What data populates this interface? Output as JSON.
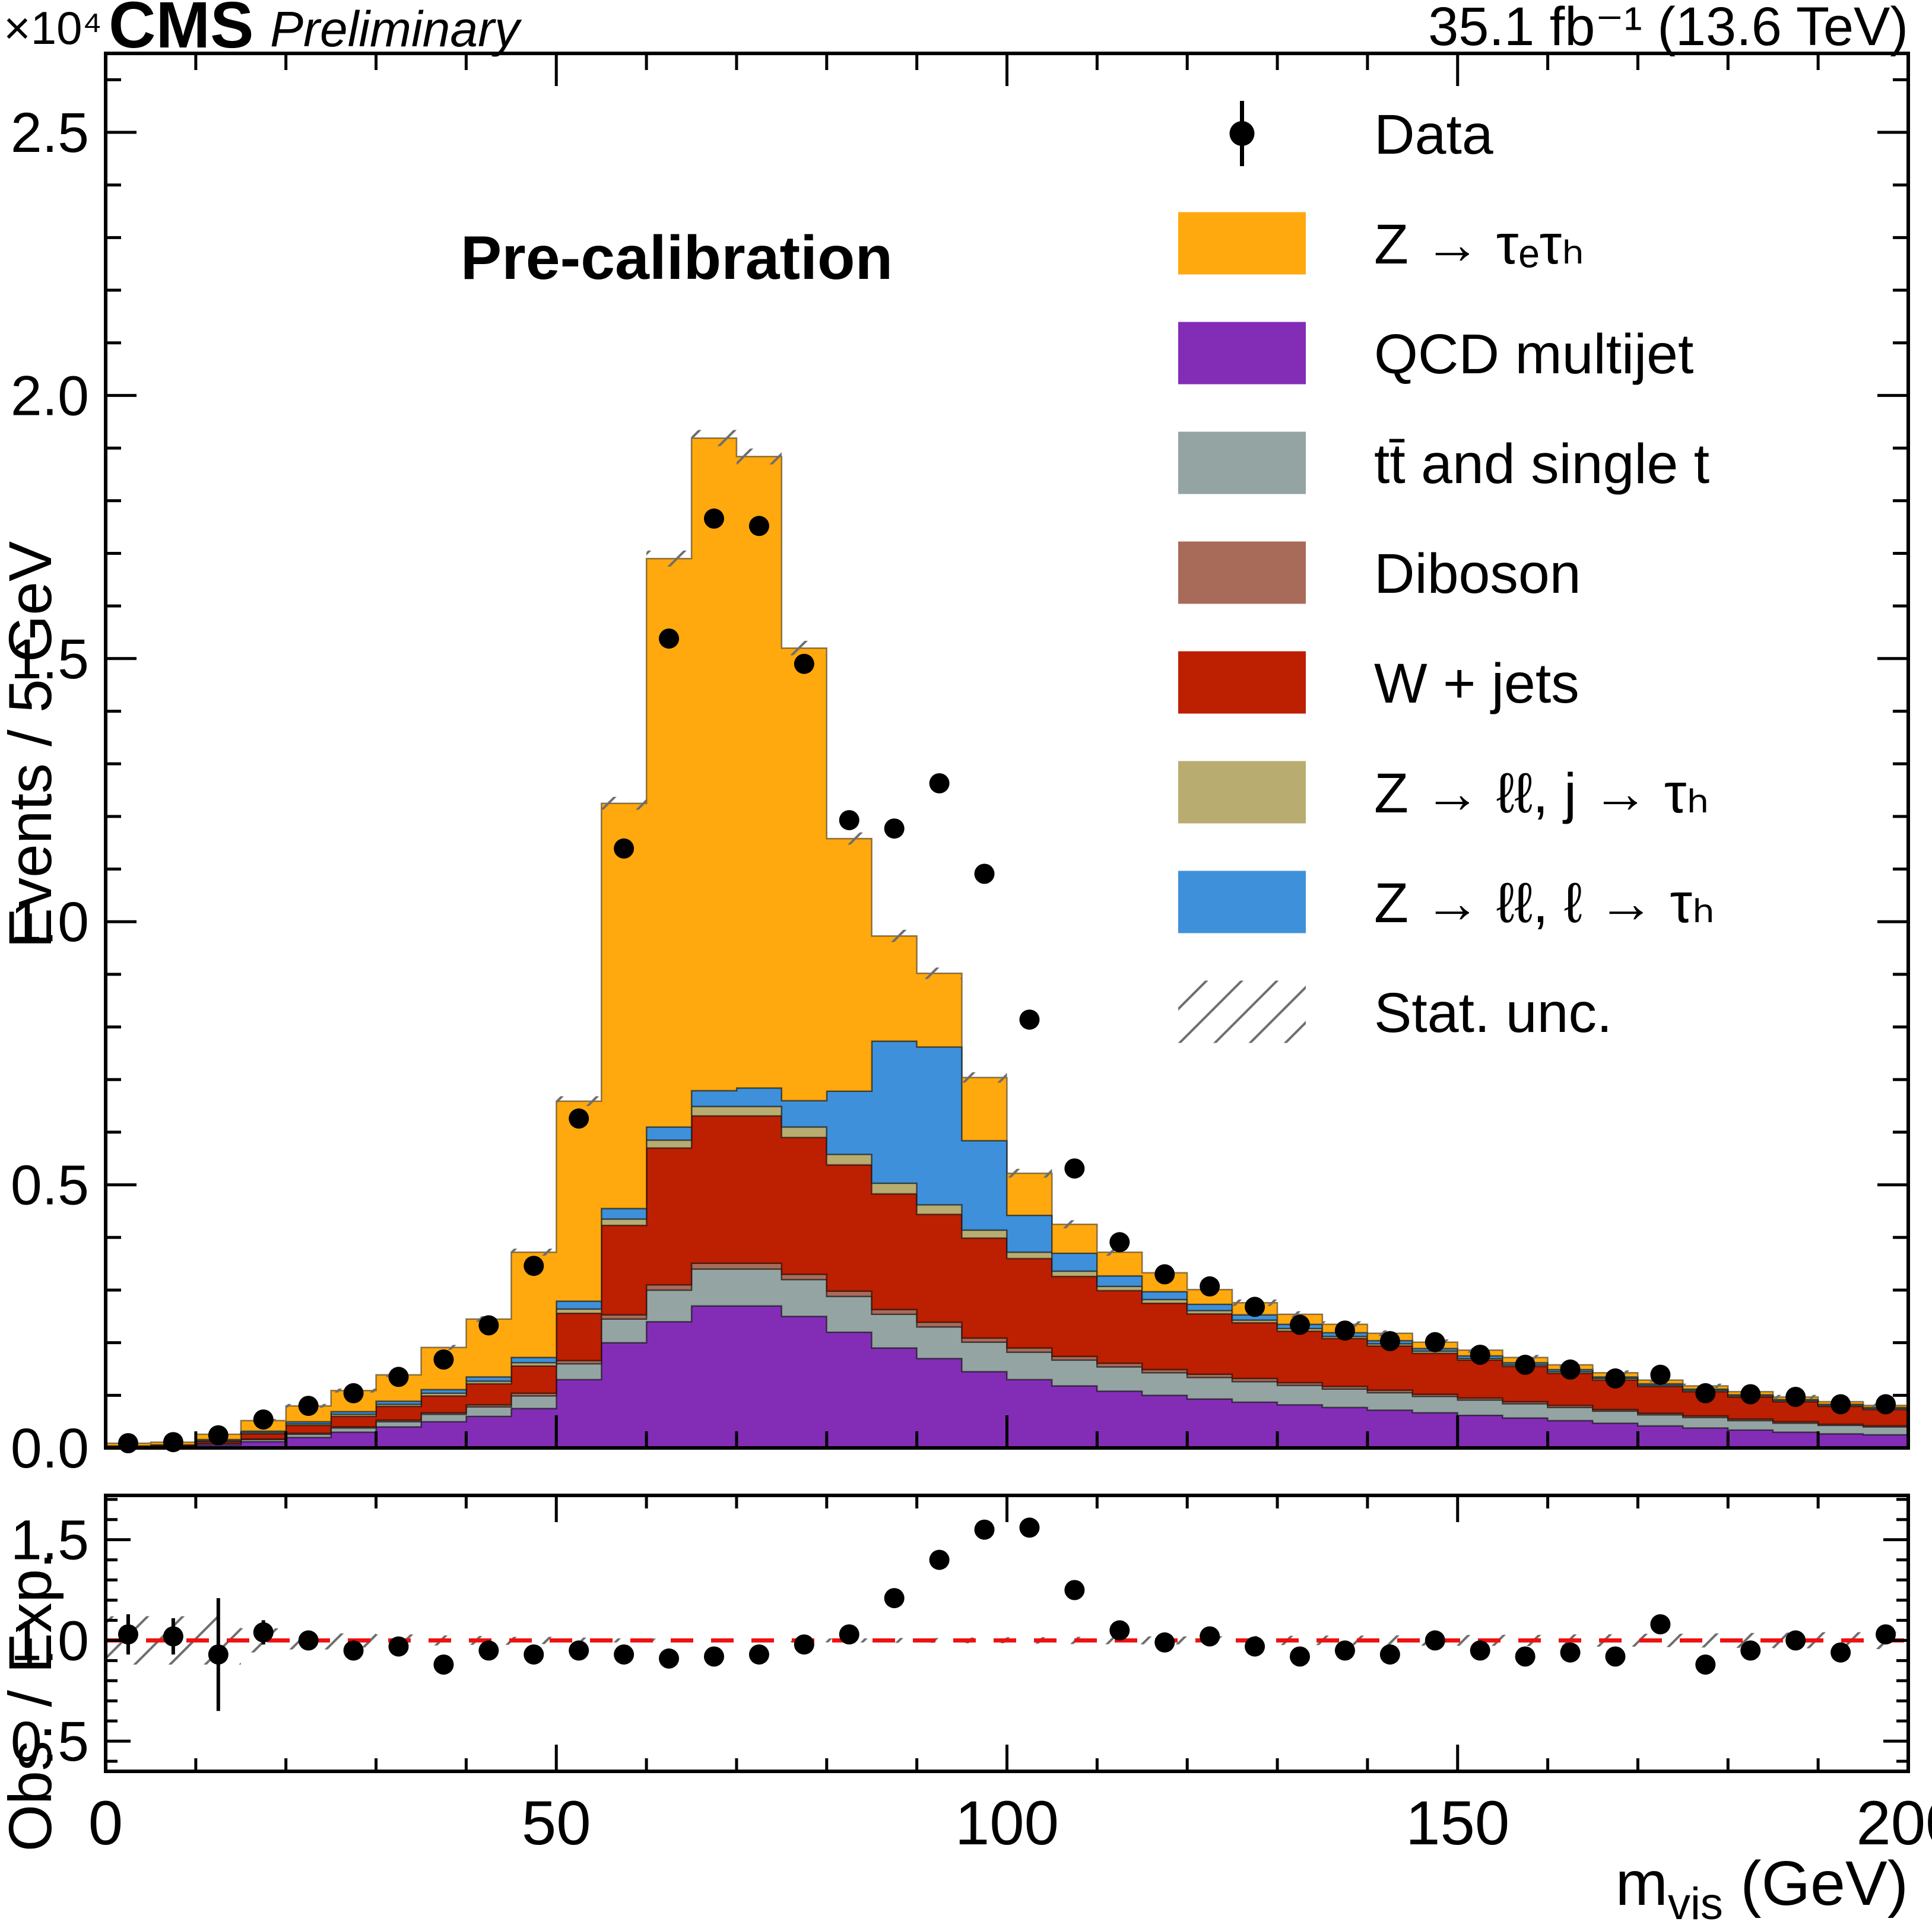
{
  "header": {
    "experiment": "CMS",
    "label": "Preliminary",
    "lumi": "35.1 fb⁻¹ (13.6 TeV)"
  },
  "legend": [
    {
      "name": "data",
      "label": "Data",
      "type": "marker",
      "color": "#000000"
    },
    {
      "name": "ztautau",
      "label": "Z → τₑτₕ",
      "type": "fill",
      "color": "#ffa90e"
    },
    {
      "name": "qcd",
      "label": "QCD multijet",
      "type": "fill",
      "color": "#832db6"
    },
    {
      "name": "top",
      "label": "tt̄ and single t",
      "type": "fill",
      "color": "#94a4a2"
    },
    {
      "name": "diboson",
      "label": "Diboson",
      "type": "fill",
      "color": "#a96b59"
    },
    {
      "name": "wjets",
      "label": "W + jets",
      "type": "fill",
      "color": "#bd1f01"
    },
    {
      "name": "zll_j",
      "label": "Z → ℓℓ, j → τₕ",
      "type": "fill",
      "color": "#b9ac70"
    },
    {
      "name": "zll_l",
      "label": "Z → ℓℓ, ℓ → τₕ",
      "type": "fill",
      "color": "#3f90da"
    },
    {
      "name": "statunc",
      "label": "Stat.  unc.",
      "type": "hatch",
      "color": "#666666"
    }
  ],
  "chart_data": {
    "type": "stacked_histogram_with_ratio",
    "annotation": "Pre-calibration",
    "ylabel": "Events / 5 GeV",
    "y_multiplier": "×10⁴",
    "ratio_ylabel": "Obs. / Exp.",
    "xlabel_main": "m",
    "xlabel_sub": "vis",
    "xlabel_unit": " (GeV)",
    "x_range": [
      0,
      200
    ],
    "bin_width": 5,
    "main_ylim": [
      0,
      2.65
    ],
    "main_yticks": {
      "values": [
        0,
        0.5,
        1.0,
        1.5,
        2.0,
        2.5
      ],
      "labels": [
        "0.0",
        "0.5",
        "1.0",
        "1.5",
        "2.0",
        "2.5"
      ]
    },
    "ratio_ylim": [
      0.35,
      1.72
    ],
    "ratio_yticks": {
      "values": [
        0.5,
        1.0,
        1.5
      ],
      "labels": [
        "0.5",
        "1.0",
        "1.5"
      ]
    },
    "xticks": {
      "values": [
        0,
        50,
        100,
        150,
        200
      ],
      "labels": [
        "0",
        "50",
        "100",
        "150",
        "200"
      ]
    },
    "units": "events ×10⁴ per 5 GeV bin",
    "series": [
      {
        "name": "qcd",
        "label": "QCD multijet",
        "color": "#832db6",
        "values": [
          0.002,
          0.003,
          0.006,
          0.012,
          0.02,
          0.03,
          0.04,
          0.05,
          0.06,
          0.075,
          0.13,
          0.2,
          0.24,
          0.27,
          0.27,
          0.25,
          0.22,
          0.19,
          0.17,
          0.145,
          0.13,
          0.118,
          0.108,
          0.1,
          0.093,
          0.087,
          0.082,
          0.077,
          0.072,
          0.067,
          0.062,
          0.057,
          0.052,
          0.047,
          0.042,
          0.038,
          0.034,
          0.03,
          0.027,
          0.025
        ]
      },
      {
        "name": "top",
        "label": "tt̄ and single t",
        "color": "#94a4a2",
        "values": [
          0.001,
          0.001,
          0.002,
          0.004,
          0.006,
          0.008,
          0.01,
          0.014,
          0.018,
          0.024,
          0.03,
          0.045,
          0.06,
          0.07,
          0.07,
          0.07,
          0.068,
          0.064,
          0.06,
          0.056,
          0.052,
          0.049,
          0.046,
          0.043,
          0.041,
          0.039,
          0.037,
          0.035,
          0.033,
          0.031,
          0.029,
          0.027,
          0.025,
          0.023,
          0.021,
          0.02,
          0.018,
          0.017,
          0.016,
          0.015
        ]
      },
      {
        "name": "diboson",
        "label": "Diboson",
        "color": "#a96b59",
        "values": [
          0.0,
          0.0,
          0.001,
          0.001,
          0.002,
          0.002,
          0.003,
          0.003,
          0.004,
          0.005,
          0.006,
          0.008,
          0.01,
          0.011,
          0.011,
          0.01,
          0.01,
          0.009,
          0.009,
          0.008,
          0.008,
          0.007,
          0.007,
          0.006,
          0.006,
          0.006,
          0.005,
          0.005,
          0.005,
          0.004,
          0.004,
          0.004,
          0.004,
          0.003,
          0.003,
          0.003,
          0.003,
          0.003,
          0.002,
          0.002
        ]
      },
      {
        "name": "wjets",
        "label": "W + jets",
        "color": "#bd1f01",
        "values": [
          0.001,
          0.002,
          0.004,
          0.01,
          0.015,
          0.02,
          0.026,
          0.032,
          0.04,
          0.052,
          0.09,
          0.17,
          0.26,
          0.28,
          0.28,
          0.26,
          0.24,
          0.22,
          0.205,
          0.19,
          0.17,
          0.152,
          0.138,
          0.126,
          0.115,
          0.106,
          0.098,
          0.091,
          0.084,
          0.078,
          0.072,
          0.067,
          0.061,
          0.056,
          0.051,
          0.046,
          0.042,
          0.038,
          0.034,
          0.031
        ]
      },
      {
        "name": "zll_j",
        "label": "Z → ℓℓ, j → τₕ",
        "color": "#b9ac70",
        "values": [
          0.0,
          0.0,
          0.001,
          0.002,
          0.003,
          0.004,
          0.004,
          0.005,
          0.005,
          0.006,
          0.008,
          0.012,
          0.015,
          0.018,
          0.018,
          0.02,
          0.02,
          0.02,
          0.018,
          0.015,
          0.012,
          0.01,
          0.008,
          0.007,
          0.006,
          0.005,
          0.005,
          0.004,
          0.004,
          0.004,
          0.003,
          0.003,
          0.003,
          0.003,
          0.002,
          0.002,
          0.002,
          0.002,
          0.002,
          0.002
        ]
      },
      {
        "name": "zll_l",
        "label": "Z → ℓℓ, ℓ → τₕ",
        "color": "#3f90da",
        "values": [
          0.0,
          0.0,
          0.002,
          0.003,
          0.004,
          0.005,
          0.006,
          0.007,
          0.008,
          0.01,
          0.015,
          0.02,
          0.025,
          0.03,
          0.035,
          0.05,
          0.12,
          0.27,
          0.3,
          0.17,
          0.07,
          0.034,
          0.02,
          0.015,
          0.012,
          0.01,
          0.008,
          0.007,
          0.006,
          0.005,
          0.005,
          0.004,
          0.004,
          0.003,
          0.003,
          0.003,
          0.002,
          0.002,
          0.002,
          0.002
        ]
      },
      {
        "name": "ztautau",
        "label": "Z → τₑτₕ",
        "color": "#ffa90e",
        "values": [
          0.005,
          0.005,
          0.01,
          0.02,
          0.03,
          0.04,
          0.05,
          0.08,
          0.11,
          0.2,
          0.38,
          0.77,
          1.08,
          1.24,
          1.2,
          0.86,
          0.48,
          0.2,
          0.14,
          0.12,
          0.08,
          0.055,
          0.045,
          0.036,
          0.028,
          0.023,
          0.019,
          0.016,
          0.014,
          0.012,
          0.011,
          0.01,
          0.009,
          0.008,
          0.007,
          0.006,
          0.006,
          0.005,
          0.005,
          0.004
        ]
      }
    ],
    "data_points": {
      "label": "Data",
      "color": "#000000",
      "values": [
        0.009,
        0.011,
        0.024,
        0.054,
        0.08,
        0.104,
        0.135,
        0.168,
        0.233,
        0.346,
        0.626,
        1.139,
        1.538,
        1.766,
        1.752,
        1.49,
        1.193,
        1.177,
        1.263,
        1.091,
        0.814,
        0.531,
        0.391,
        0.33,
        0.307,
        0.268,
        0.234,
        0.223,
        0.203,
        0.201,
        0.177,
        0.158,
        0.149,
        0.132,
        0.139,
        0.104,
        0.102,
        0.097,
        0.083,
        0.083
      ]
    },
    "ratio": {
      "values": [
        1.03,
        1.02,
        0.93,
        1.04,
        1.0,
        0.95,
        0.97,
        0.88,
        0.95,
        0.93,
        0.95,
        0.93,
        0.91,
        0.92,
        0.93,
        0.98,
        1.03,
        1.21,
        1.4,
        1.55,
        1.56,
        1.25,
        1.05,
        0.99,
        1.02,
        0.97,
        0.92,
        0.95,
        0.93,
        1.0,
        0.95,
        0.92,
        0.94,
        0.92,
        1.08,
        0.88,
        0.95,
        1.0,
        0.94,
        1.03
      ],
      "errors": [
        0.1,
        0.09,
        0.28,
        0.06,
        0.04,
        0.03,
        0.03,
        0.02,
        0.02,
        0.02,
        0.012,
        0.009,
        0.008,
        0.007,
        0.007,
        0.008,
        0.009,
        0.01,
        0.011,
        0.012,
        0.014,
        0.017,
        0.02,
        0.022,
        0.023,
        0.024,
        0.026,
        0.027,
        0.028,
        0.029,
        0.031,
        0.033,
        0.034,
        0.036,
        0.037,
        0.04,
        0.042,
        0.044,
        0.046,
        0.048
      ],
      "refline": 1.0,
      "refline_color": "#ee1111"
    },
    "stat_unc_rel": [
      0.12,
      0.12,
      0.12,
      0.06,
      0.045,
      0.035,
      0.03,
      0.025,
      0.022,
      0.018,
      0.014,
      0.01,
      0.009,
      0.008,
      0.008,
      0.009,
      0.01,
      0.012,
      0.012,
      0.014,
      0.016,
      0.018,
      0.019,
      0.02,
      0.021,
      0.022,
      0.023,
      0.024,
      0.025,
      0.026,
      0.027,
      0.028,
      0.03,
      0.031,
      0.033,
      0.035,
      0.037,
      0.039,
      0.041,
      0.043
    ],
    "hatch_color": "#666666"
  }
}
